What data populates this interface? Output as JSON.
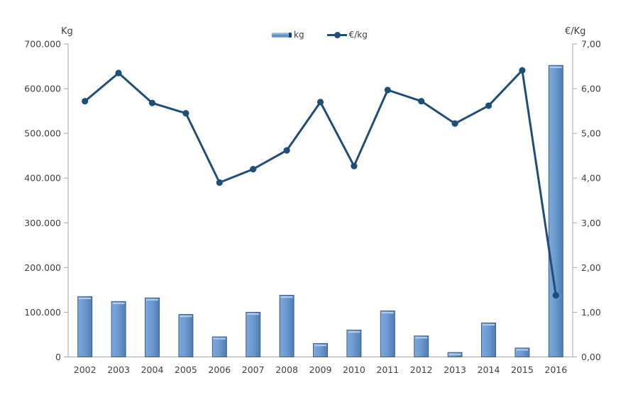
{
  "chart_data": {
    "type": "combo-bar-line-dual-axis",
    "categories": [
      "2002",
      "2003",
      "2004",
      "2005",
      "2006",
      "2007",
      "2008",
      "2009",
      "2010",
      "2011",
      "2012",
      "2013",
      "2014",
      "2015",
      "2016"
    ],
    "series": [
      {
        "name": "kg",
        "type": "bar",
        "axis": "left",
        "color": "#6D9BD3",
        "border_color": "#3A618E",
        "values": [
          135000,
          124000,
          132000,
          95000,
          45000,
          100000,
          138000,
          30000,
          60000,
          103000,
          47000,
          10000,
          76000,
          20000,
          652000
        ]
      },
      {
        "name": "€/kg",
        "type": "line",
        "axis": "right",
        "color": "#1F4E79",
        "values": [
          5.72,
          6.35,
          5.68,
          5.45,
          3.9,
          4.2,
          4.62,
          5.7,
          4.27,
          5.97,
          5.72,
          5.22,
          5.62,
          6.41,
          1.38
        ]
      }
    ],
    "left_axis": {
      "title": "Kg",
      "min": 0,
      "max": 700000,
      "step": 100000,
      "tick_labels": [
        "0",
        "100.000",
        "200.000",
        "300.000",
        "400.000",
        "500.000",
        "600.000",
        "700.000"
      ]
    },
    "right_axis": {
      "title": "€/Kg",
      "min": 0,
      "max": 7,
      "step": 1,
      "tick_labels": [
        "0,00",
        "1,00",
        "2,00",
        "3,00",
        "4,00",
        "5,00",
        "6,00",
        "7,00"
      ]
    },
    "legend": [
      {
        "label": "kg",
        "marker": "bar-swatch"
      },
      {
        "label": "€/kg",
        "marker": "line-marker-swatch"
      }
    ],
    "legend_position": "top-center",
    "grid": "off",
    "background": "#FFFFFF",
    "axis_color": "#A6A6A6",
    "text_color": "#3F3F3F"
  }
}
